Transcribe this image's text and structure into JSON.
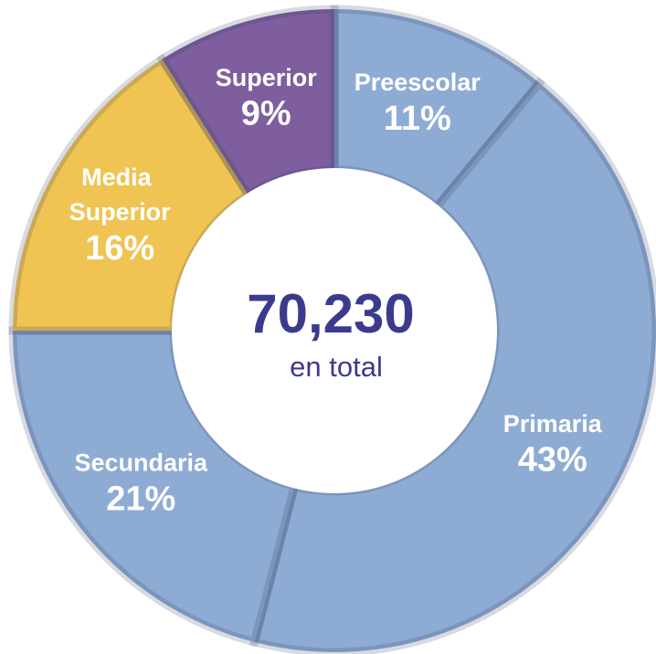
{
  "chart_data": {
    "type": "donut",
    "categories": [
      "Preescolar",
      "Primaria",
      "Secundaria",
      "Media Superior",
      "Superior"
    ],
    "values": [
      11,
      43,
      21,
      16,
      9
    ],
    "value_labels": [
      "11%",
      "43%",
      "21%",
      "16%",
      "9%"
    ],
    "colors": [
      "#8eabd4",
      "#8eabd4",
      "#8eabd4",
      "#efc453",
      "#7e5e9e"
    ],
    "center_text": "70,230",
    "center_subtext": "en total"
  }
}
